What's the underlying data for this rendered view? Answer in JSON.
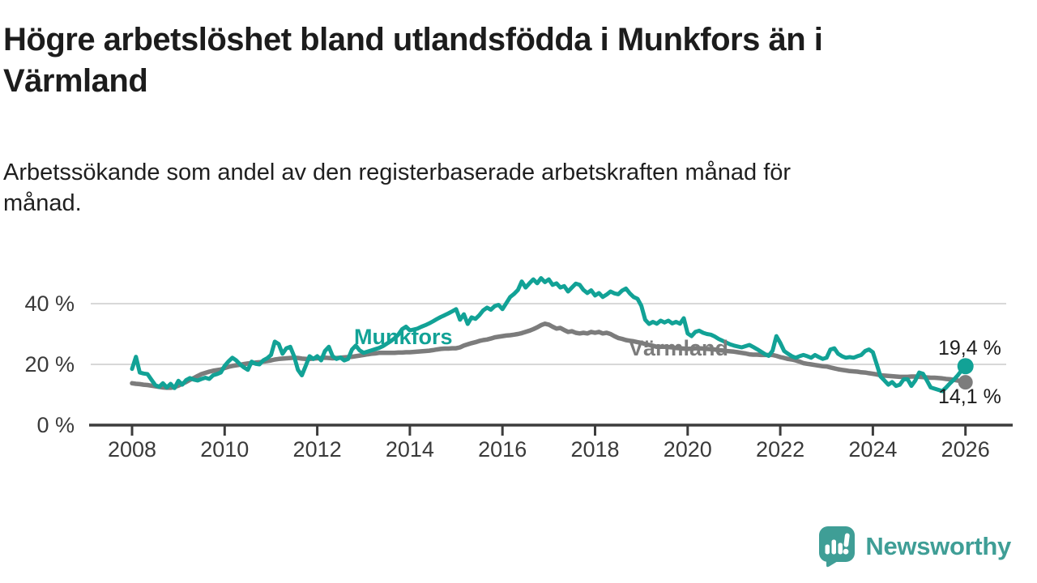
{
  "header": {
    "title": "Högre arbetslöshet bland utlandsfödda i Munkfors än i\nVärmland",
    "subtitle": "Arbetssökande som andel av den registerbaserade arbetskraften månad för\nmånad."
  },
  "chart_data": {
    "type": "line",
    "title": "Högre arbetslöshet bland utlandsfödda i Munkfors än i Värmland",
    "subtitle": "Arbetssökande som andel av den registerbaserade arbetskraften månad för månad.",
    "unit": "%",
    "x_start": "2008-01",
    "x_interval": "monthly",
    "x_ticks": [
      2008,
      2010,
      2012,
      2014,
      2016,
      2018,
      2020,
      2022,
      2024,
      2026
    ],
    "x_tick_labels": [
      "2008",
      "2010",
      "2012",
      "2014",
      "2016",
      "2018",
      "2020",
      "2022",
      "2024",
      "2026"
    ],
    "y_ticks": [
      0,
      20,
      40
    ],
    "y_tick_labels": [
      "0 %",
      "20 %",
      "40 %"
    ],
    "ylim": [
      0,
      50
    ],
    "grid": "horizontal",
    "legend": "inline-series-labels",
    "colors": {
      "grid": "#d8d8d8",
      "axis": "#3c3c3c",
      "tick_text": "#3a3a3a"
    },
    "series": [
      {
        "name": "Munkfors",
        "label": "Munkfors",
        "color": "#12a296",
        "line_width": 5,
        "end_dot_radius": 10,
        "end_value": 19.4,
        "end_label": "19,4 %",
        "values": [
          18.5,
          22.5,
          17.3,
          17,
          16.8,
          15,
          13.2,
          12.6,
          13.8,
          12.4,
          13.6,
          12.2,
          14.6,
          13.3,
          14.8,
          15.5,
          15,
          14.7,
          15.2,
          15.6,
          15.2,
          16.4,
          16.8,
          17.3,
          19.5,
          21,
          22.2,
          21.3,
          20,
          19,
          18.2,
          20.9,
          20.2,
          20,
          21.3,
          22,
          23.1,
          27.5,
          26.7,
          23.5,
          25.3,
          25.8,
          22.7,
          18.2,
          16.4,
          19.5,
          22.7,
          21.8,
          22.7,
          21.3,
          24.4,
          25.8,
          22.7,
          21.8,
          22.3,
          21.3,
          21.8,
          24.9,
          26.2,
          24.6,
          23.8,
          24.2,
          24.6,
          25,
          25.4,
          26,
          26.8,
          27.6,
          28.6,
          29.8,
          31.6,
          32.4,
          31.2,
          31.5,
          31.8,
          32.4,
          32.9,
          33.5,
          34.2,
          34.9,
          35.6,
          36.2,
          36.8,
          37.5,
          38.2,
          34.7,
          36.5,
          33.3,
          35.5,
          35,
          36.2,
          37.8,
          38.7,
          38,
          39.2,
          39.6,
          38.2,
          40.2,
          42.2,
          43.2,
          44.5,
          47.3,
          45.3,
          46.7,
          48,
          46.7,
          48.4,
          47.1,
          48,
          46.2,
          46.7,
          45.3,
          45.8,
          44,
          45.3,
          46.6,
          46.2,
          44.5,
          43.5,
          44.4,
          42.7,
          43.5,
          42.2,
          43,
          44,
          43.4,
          43.1,
          44.3,
          45,
          43.4,
          42.2,
          41.6,
          39.3,
          34.7,
          33.3,
          34,
          33.4,
          34.4,
          33.8,
          34.4,
          33.5,
          34,
          33.4,
          35.2,
          30.2,
          29.3,
          30.7,
          31.1,
          30.4,
          30,
          29.8,
          29.2,
          28.4,
          27.8,
          27.2,
          26.6,
          26.2,
          25.9,
          25.6,
          26,
          26.4,
          25.7,
          25,
          24.2,
          23.4,
          22.8,
          24.5,
          29.3,
          27.1,
          24.4,
          23.5,
          22.7,
          22.2,
          22.7,
          23.1,
          22.7,
          22.2,
          23.1,
          22.4,
          21.8,
          22.2,
          24.9,
          25.3,
          23.5,
          22.7,
          22.2,
          22.4,
          22.2,
          22.7,
          23.1,
          24.4,
          24.9,
          24,
          20,
          16,
          14.7,
          13.3,
          14.2,
          12.9,
          13.3,
          15.1,
          15.1,
          12.9,
          14.7,
          17.3,
          16.9,
          14.7,
          12.4,
          12,
          11.6,
          11.2,
          12.4,
          13.8,
          15,
          16.4,
          18,
          19.4
        ]
      },
      {
        "name": "Värmland",
        "label": "Värmland",
        "color": "#7c7c7c",
        "line_width": 5.5,
        "end_dot_radius": 9,
        "end_value": 14.1,
        "end_label": "14,1 %",
        "values": [
          13.8,
          13.6,
          13.5,
          13.3,
          13.2,
          13,
          12.8,
          12.6,
          12.4,
          12.3,
          12.3,
          12.5,
          13,
          13.6,
          14.2,
          14.9,
          15.5,
          16.2,
          16.8,
          17.2,
          17.6,
          17.9,
          18.1,
          18.3,
          18.8,
          19.2,
          19.5,
          19.7,
          19.9,
          20.1,
          20.3,
          20.4,
          20.6,
          20.7,
          20.9,
          21.1,
          21.3,
          21.6,
          21.8,
          21.9,
          22,
          22.1,
          22.2,
          22.1,
          21.9,
          21.8,
          21.8,
          21.9,
          22,
          22.1,
          22.2,
          22.1,
          22,
          22.1,
          22.2,
          22.3,
          22.4,
          22.5,
          22.7,
          22.9,
          23.1,
          23.3,
          23.5,
          23.6,
          23.8,
          23.8,
          23.8,
          23.8,
          23.8,
          23.9,
          23.9,
          24,
          24,
          24.1,
          24.2,
          24.3,
          24.4,
          24.5,
          24.7,
          24.9,
          25.1,
          25.2,
          25.2,
          25.3,
          25.3,
          25.6,
          26.2,
          26.6,
          27,
          27.3,
          27.7,
          28,
          28.2,
          28.5,
          28.9,
          29.1,
          29.3,
          29.5,
          29.6,
          29.8,
          30,
          30.3,
          30.7,
          31.1,
          31.6,
          32.2,
          32.9,
          33.4,
          33.1,
          32.4,
          31.8,
          32,
          31.3,
          30.7,
          30.9,
          30.4,
          30.2,
          30.4,
          30.2,
          30.7,
          30.4,
          30.7,
          30.2,
          30.4,
          30,
          29.3,
          28.7,
          28.4,
          28,
          27.8,
          27.6,
          27.3,
          27.1,
          26.7,
          26.4,
          26.1,
          25.8,
          25.8,
          25.8,
          25.7,
          25.6,
          25.4,
          25.3,
          25.2,
          25.1,
          25.2,
          25.3,
          25.3,
          25.2,
          25.1,
          25,
          24.9,
          24.7,
          24.6,
          24.4,
          24.3,
          24.2,
          24,
          23.8,
          23.6,
          23.3,
          23.2,
          23.2,
          23.1,
          23.1,
          23.1,
          23.1,
          22.8,
          22.4,
          22.1,
          21.8,
          21.6,
          21.3,
          20.9,
          20.4,
          20.2,
          20,
          19.8,
          19.6,
          19.4,
          19.3,
          19,
          18.7,
          18.4,
          18.2,
          18,
          17.8,
          17.7,
          17.6,
          17.4,
          17.3,
          17.1,
          16.9,
          16.7,
          16.4,
          16.3,
          16.2,
          16.1,
          16,
          15.9,
          15.9,
          15.9,
          16,
          16,
          15.9,
          15.8,
          15.7,
          15.6,
          15.6,
          15.5,
          15.4,
          15.2,
          15.1,
          14.9,
          14.7,
          14.4,
          14.1
        ]
      }
    ]
  },
  "footer": {
    "brand": "Newsworthy",
    "brand_color": "#3f9e96",
    "logo_icon": "chart-bars-speech-bubble-icon"
  }
}
